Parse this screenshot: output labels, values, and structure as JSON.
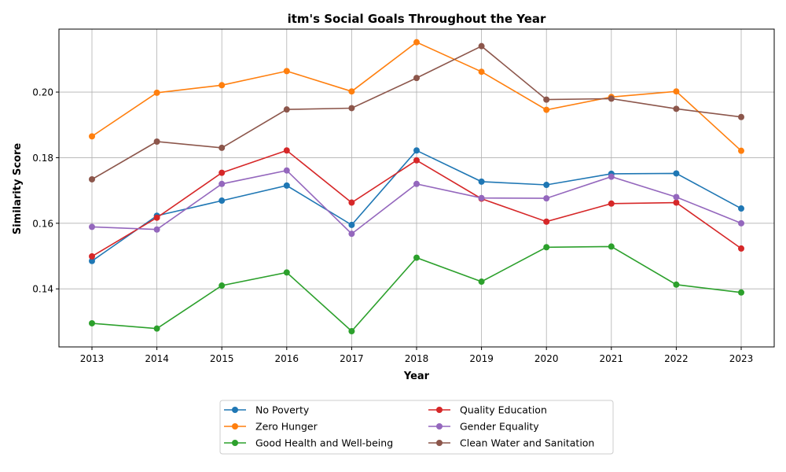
{
  "chart_data": {
    "type": "line",
    "title": "itm's Social Goals Throughout the Year",
    "xlabel": "Year",
    "ylabel": "Similarity Score",
    "x": [
      "2013",
      "2014",
      "2015",
      "2016",
      "2017",
      "2018",
      "2019",
      "2020",
      "2021",
      "2022",
      "2023"
    ],
    "ylim": [
      0.1223,
      0.2192
    ],
    "yticks": [
      "0.14",
      "0.16",
      "0.18",
      "0.20"
    ],
    "grid": true,
    "legend_position": "bottom-center",
    "legend_columns": 2,
    "series": [
      {
        "name": "No Poverty",
        "color": "#1f77b4",
        "values": [
          0.1485,
          0.1623,
          0.1669,
          0.1715,
          0.1595,
          0.1822,
          0.1727,
          0.1717,
          0.1751,
          0.1752,
          0.1645
        ]
      },
      {
        "name": "Zero Hunger",
        "color": "#ff7f0e",
        "values": [
          0.1865,
          0.1998,
          0.2021,
          0.2064,
          0.2002,
          0.2152,
          0.2062,
          0.1946,
          0.1985,
          0.2002,
          0.1821
        ]
      },
      {
        "name": "Good Health and Well-being",
        "color": "#2ca02c",
        "values": [
          0.1295,
          0.1279,
          0.141,
          0.145,
          0.1271,
          0.1495,
          0.1422,
          0.1527,
          0.1529,
          0.1413,
          0.1389
        ]
      },
      {
        "name": "Quality Education",
        "color": "#d62728",
        "values": [
          0.1499,
          0.1617,
          0.1754,
          0.1822,
          0.1663,
          0.1792,
          0.1675,
          0.1605,
          0.166,
          0.1663,
          0.1523
        ]
      },
      {
        "name": "Gender Equality",
        "color": "#9467bd",
        "values": [
          0.1589,
          0.1581,
          0.172,
          0.1761,
          0.1568,
          0.172,
          0.1677,
          0.1676,
          0.1742,
          0.168,
          0.16
        ]
      },
      {
        "name": "Clean Water and Sanitation",
        "color": "#8c564b",
        "values": [
          0.1734,
          0.1849,
          0.183,
          0.1947,
          0.1951,
          0.2043,
          0.214,
          0.1977,
          0.198,
          0.1949,
          0.1924
        ]
      }
    ]
  }
}
